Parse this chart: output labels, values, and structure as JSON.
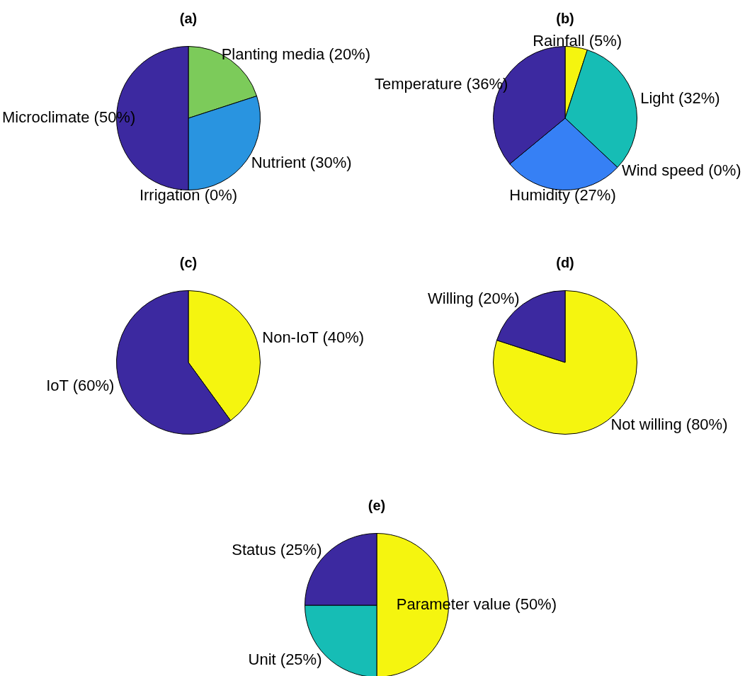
{
  "chart_data": [
    {
      "type": "pie",
      "title": "(a)",
      "categories": [
        "Planting media (20%)",
        "Nutrient (30%)",
        "Irrigation (0%)",
        "Microclimate (50%)"
      ],
      "values": [
        20,
        30,
        0,
        50
      ],
      "colors": [
        "#7ccb5a",
        "#2994e0",
        "#2f6fe0",
        "#3c29a0"
      ]
    },
    {
      "type": "pie",
      "title": "(b)",
      "categories": [
        "Rainfall (5%)",
        "Light (32%)",
        "Wind speed (0%)",
        "Humidity (27%)",
        "Temperature (36%)"
      ],
      "values": [
        5,
        32,
        0,
        27,
        36
      ],
      "colors": [
        "#f5f50f",
        "#16bdb5",
        "#7ccb5a",
        "#3680f5",
        "#3c29a0"
      ]
    },
    {
      "type": "pie",
      "title": "(c)",
      "categories": [
        "Non-IoT (40%)",
        "IoT (60%)"
      ],
      "values": [
        40,
        60
      ],
      "colors": [
        "#f5f50f",
        "#3c29a0"
      ]
    },
    {
      "type": "pie",
      "title": "(d)",
      "categories": [
        "Not willing (80%)",
        "Willing (20%)"
      ],
      "values": [
        80,
        20
      ],
      "colors": [
        "#f5f50f",
        "#3c29a0"
      ]
    },
    {
      "type": "pie",
      "title": "(e)",
      "categories": [
        "Parameter value (50%)",
        "Unit (25%)",
        "Status (25%)"
      ],
      "values": [
        50,
        25,
        25
      ],
      "colors": [
        "#f5f50f",
        "#16bdb5",
        "#3c29a0"
      ]
    }
  ]
}
